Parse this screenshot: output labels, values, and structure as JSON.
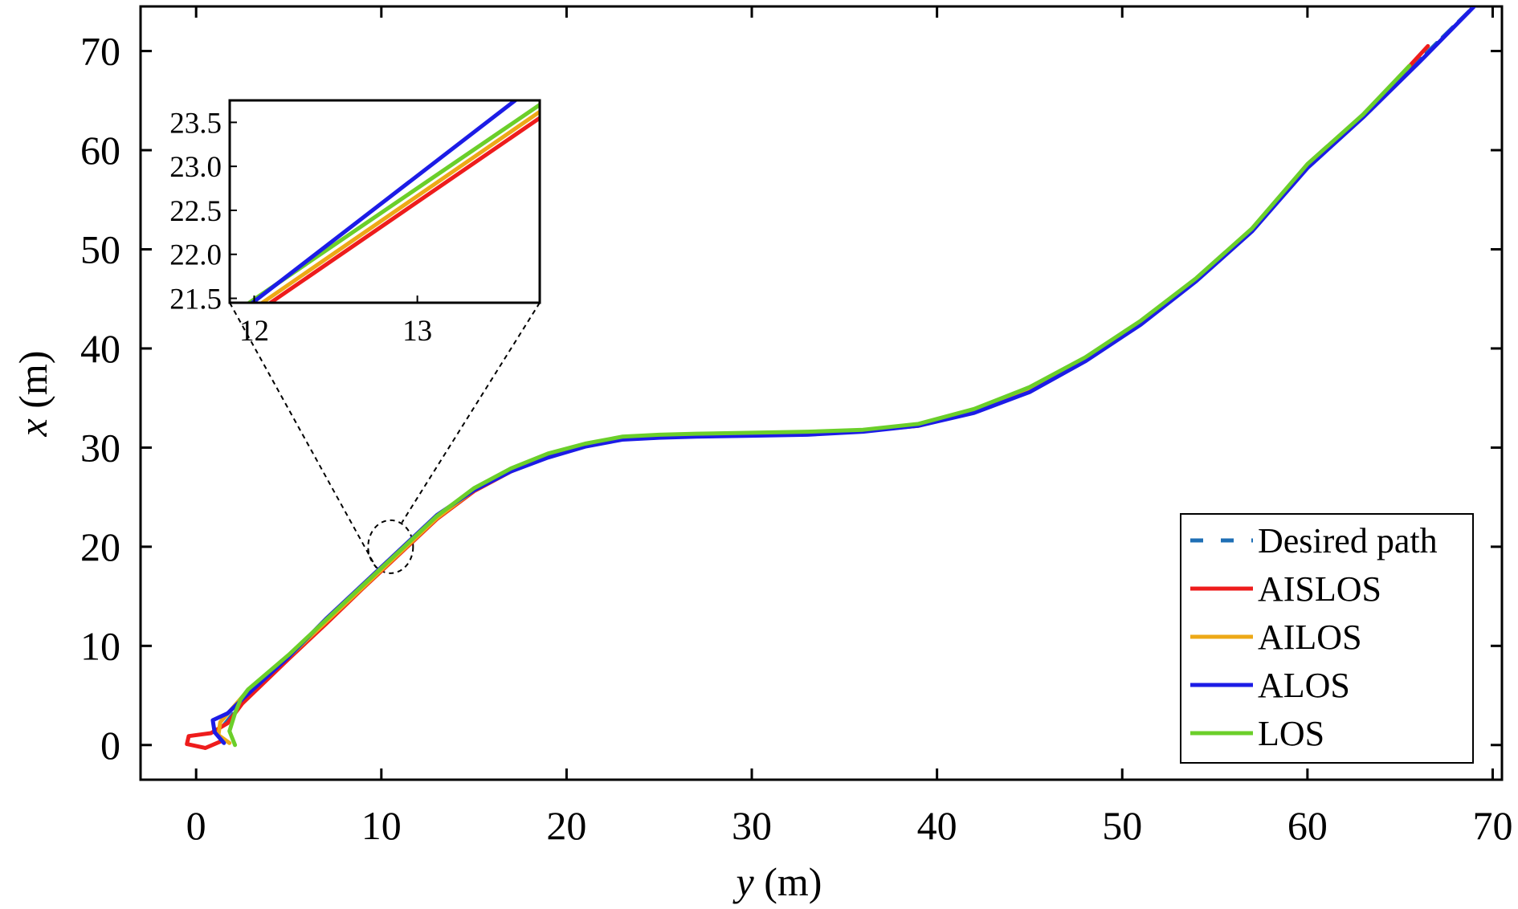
{
  "chart_data": {
    "type": "line",
    "xlabel_var": "y",
    "xlabel_unit": " (m)",
    "ylabel_var": "x",
    "ylabel_unit": " (m)",
    "xlim": [
      -3,
      70.5
    ],
    "ylim": [
      -3.5,
      74.5
    ],
    "xticks": [
      0,
      10,
      20,
      30,
      40,
      50,
      60,
      70
    ],
    "yticks": [
      0,
      10,
      20,
      30,
      40,
      50,
      60,
      70
    ],
    "grid": false,
    "legend_position": "bottom-right",
    "series": [
      {
        "name": "Desired path",
        "color": "#1f6fb5",
        "style": "dashed",
        "x": [
          1.5,
          3,
          5,
          7,
          9,
          11,
          13,
          15,
          17,
          19,
          21,
          23,
          25,
          27,
          30,
          33,
          36,
          39,
          42,
          45,
          48,
          51,
          54,
          57,
          60,
          63,
          66,
          69
        ],
        "y": [
          2,
          5.5,
          9,
          12.5,
          16,
          19.5,
          23,
          25.8,
          27.8,
          29.3,
          30.3,
          31,
          31.2,
          31.3,
          31.4,
          31.5,
          31.7,
          32.3,
          33.8,
          36,
          39,
          42.7,
          47,
          52,
          58.5,
          63.5,
          69,
          74.5
        ]
      },
      {
        "name": "AISLOS",
        "color": "#ee1c1c",
        "style": "solid",
        "x": [
          1.5,
          0.5,
          -0.5,
          -0.4,
          0.8,
          1.7,
          2.5,
          5,
          7,
          9,
          11,
          13,
          15,
          17,
          19,
          21,
          23,
          25,
          27,
          30,
          33,
          36,
          39,
          42,
          45,
          48,
          51,
          54,
          57,
          60,
          63,
          66.5
        ],
        "y": [
          0.5,
          -0.3,
          0.1,
          0.9,
          1.2,
          2.2,
          4.2,
          8.7,
          12.2,
          15.8,
          19.3,
          22.8,
          25.6,
          27.6,
          29.1,
          30.2,
          30.9,
          31.1,
          31.2,
          31.3,
          31.5,
          31.7,
          32.2,
          33.6,
          35.8,
          38.9,
          42.6,
          46.9,
          51.9,
          58.4,
          63.4,
          70.5
        ]
      },
      {
        "name": "AILOS",
        "color": "#eda917",
        "style": "solid",
        "x": [
          1.8,
          1.2,
          1.3,
          2.0,
          2.7,
          5,
          7,
          9,
          11,
          13,
          15,
          17,
          19,
          21,
          23,
          25,
          27,
          30,
          33,
          36,
          39,
          42,
          45,
          48,
          51,
          54,
          57,
          60,
          63,
          65.5
        ],
        "y": [
          0.2,
          1.0,
          2.3,
          3.8,
          5.3,
          8.9,
          12.4,
          15.9,
          19.4,
          22.9,
          25.7,
          27.7,
          29.2,
          30.3,
          31.0,
          31.2,
          31.3,
          31.4,
          31.5,
          31.7,
          32.3,
          33.8,
          36,
          39,
          42.7,
          47,
          52,
          58.5,
          63.5,
          68.5
        ]
      },
      {
        "name": "ALOS",
        "color": "#1c1ce6",
        "style": "solid",
        "x": [
          1.5,
          1.0,
          0.9,
          1.7,
          2.6,
          5,
          7,
          9,
          11,
          13,
          15,
          17,
          19,
          21,
          23,
          25,
          27,
          30,
          33,
          36,
          39,
          42,
          45,
          48,
          51,
          54,
          57,
          60,
          63,
          66,
          69
        ],
        "y": [
          0.2,
          1.3,
          2.5,
          3.2,
          4.8,
          8.9,
          12.7,
          16.2,
          19.7,
          23.2,
          25.7,
          27.6,
          29.0,
          30.1,
          30.8,
          31.0,
          31.1,
          31.2,
          31.3,
          31.6,
          32.2,
          33.5,
          35.6,
          38.7,
          42.4,
          46.8,
          51.8,
          58.2,
          63.3,
          68.8,
          74.5
        ]
      },
      {
        "name": "LOS",
        "color": "#6bcf2a",
        "style": "solid",
        "x": [
          2.1,
          1.8,
          2.1,
          2.4,
          2.8,
          5,
          7,
          9,
          11,
          13,
          15,
          17,
          19,
          21,
          23,
          25,
          27,
          30,
          33,
          36,
          39,
          42,
          45,
          48,
          51,
          54,
          57,
          60,
          63,
          65.5
        ],
        "y": [
          0.0,
          1.4,
          3.2,
          4.6,
          5.6,
          9.1,
          12.6,
          16.1,
          19.6,
          23.1,
          25.9,
          27.9,
          29.4,
          30.4,
          31.1,
          31.3,
          31.4,
          31.5,
          31.6,
          31.8,
          32.4,
          33.9,
          36.1,
          39.1,
          42.8,
          47.1,
          52.1,
          58.6,
          63.6,
          68.5
        ]
      }
    ],
    "inset": {
      "xlim": [
        11.85,
        13.75
      ],
      "ylim": [
        21.45,
        23.75
      ],
      "xticks": [
        12,
        13
      ],
      "xtick_labels": [
        "12",
        "13"
      ],
      "yticks": [
        21.5,
        22.0,
        22.5,
        23.0,
        23.5
      ],
      "ytick_labels": [
        "21.5",
        "22.0",
        "22.5",
        "23.0",
        "23.5"
      ],
      "zoom_center": [
        10.5,
        20
      ],
      "series": [
        {
          "name": "AISLOS",
          "x": [
            12.1,
            13.75
          ],
          "y": [
            21.45,
            23.55
          ]
        },
        {
          "name": "AILOS",
          "x": [
            12.05,
            13.75
          ],
          "y": [
            21.45,
            23.62
          ]
        },
        {
          "name": "LOS",
          "x": [
            11.97,
            13.75
          ],
          "y": [
            21.45,
            23.7
          ]
        },
        {
          "name": "ALOS",
          "x": [
            11.99,
            13.6
          ],
          "y": [
            21.45,
            23.75
          ]
        }
      ]
    }
  }
}
